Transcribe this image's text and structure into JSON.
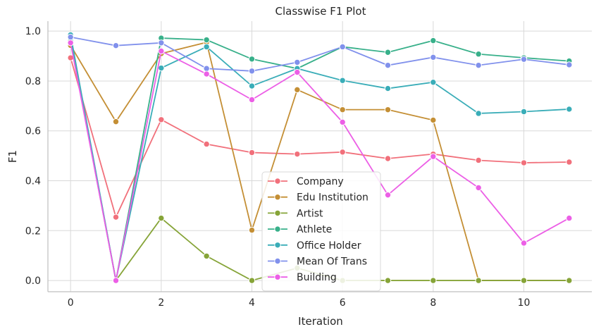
{
  "chart_data": {
    "type": "line",
    "title": "Classwise F1 Plot",
    "xlabel": "Iteration",
    "ylabel": "F1",
    "xlim": [
      -0.5,
      11.5
    ],
    "ylim": [
      -0.045,
      1.04
    ],
    "xticks": [
      0,
      2,
      4,
      6,
      8,
      10
    ],
    "yticks": [
      0.0,
      0.2,
      0.4,
      0.6,
      0.8,
      1.0
    ],
    "ytick_labels": [
      "0.0",
      "0.2",
      "0.4",
      "0.6",
      "0.8",
      "1.0"
    ],
    "grid": true,
    "legend_position": "lower-center",
    "x": [
      0,
      1,
      2,
      3,
      4,
      5,
      6,
      7,
      8,
      9,
      10,
      11
    ],
    "series": [
      {
        "name": "Company",
        "color": "#f1707b",
        "values": [
          0.893,
          0.254,
          0.645,
          0.547,
          0.513,
          0.507,
          0.515,
          0.489,
          0.507,
          0.482,
          0.472,
          0.475
        ]
      },
      {
        "name": "Edu Institution",
        "color": "#c48f35",
        "values": [
          0.943,
          0.637,
          0.91,
          0.955,
          0.202,
          0.765,
          0.685,
          0.685,
          0.643,
          0.0,
          0.0,
          0.0
        ]
      },
      {
        "name": "Artist",
        "color": "#86a438",
        "values": [
          0.975,
          0.0,
          0.25,
          0.098,
          0.0,
          0.05,
          0.0,
          0.0,
          0.0,
          0.0,
          0.0,
          0.0
        ]
      },
      {
        "name": "Athlete",
        "color": "#38b08a",
        "values": [
          0.96,
          0.0,
          0.972,
          0.965,
          0.888,
          0.85,
          0.937,
          0.915,
          0.962,
          0.908,
          0.893,
          0.88
        ]
      },
      {
        "name": "Office Holder",
        "color": "#3aadb8",
        "values": [
          0.985,
          0.0,
          0.852,
          0.937,
          0.78,
          0.85,
          0.802,
          0.77,
          0.795,
          0.67,
          0.677,
          0.687
        ]
      },
      {
        "name": "Mean Of Trans",
        "color": "#8191ec",
        "values": [
          0.976,
          0.942,
          0.953,
          0.85,
          0.84,
          0.875,
          0.937,
          0.863,
          0.895,
          0.863,
          0.887,
          0.865
        ]
      },
      {
        "name": "Building",
        "color": "#ec5fe6",
        "values": [
          0.953,
          0.0,
          0.92,
          0.828,
          0.725,
          0.835,
          0.635,
          0.343,
          0.497,
          0.372,
          0.15,
          0.25
        ]
      }
    ]
  }
}
